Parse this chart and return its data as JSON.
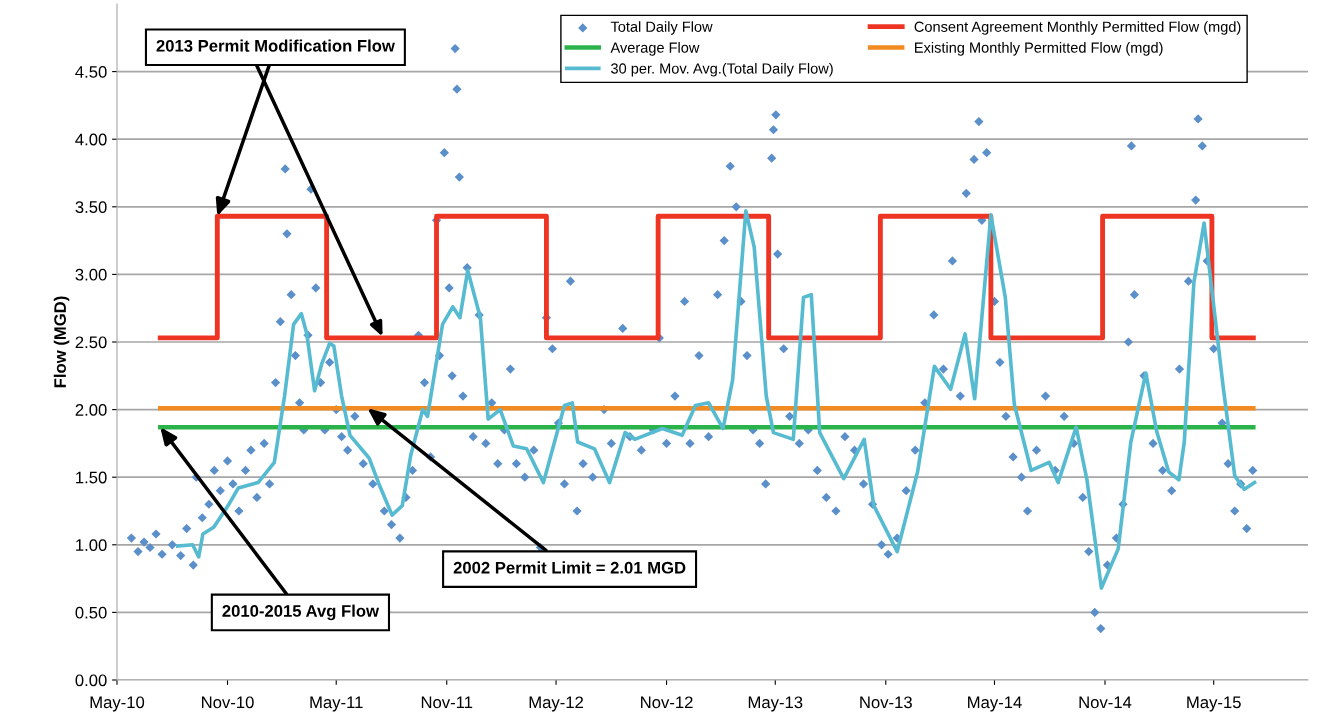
{
  "chart_data": {
    "type": "scatter",
    "ylabel": "Flow (MGD)",
    "xlim": [
      "2010-05-01",
      "2015-10-05"
    ],
    "xticks": [
      {
        "value": "2010-05-01",
        "label": "May-10"
      },
      {
        "value": "2010-11-01",
        "label": "Nov-10"
      },
      {
        "value": "2011-05-01",
        "label": "May-11"
      },
      {
        "value": "2011-11-01",
        "label": "Nov-11"
      },
      {
        "value": "2012-05-01",
        "label": "May-12"
      },
      {
        "value": "2012-11-01",
        "label": "Nov-12"
      },
      {
        "value": "2013-05-01",
        "label": "May-13"
      },
      {
        "value": "2013-11-01",
        "label": "Nov-13"
      },
      {
        "value": "2014-05-01",
        "label": "May-14"
      },
      {
        "value": "2014-11-01",
        "label": "Nov-14"
      },
      {
        "value": "2015-05-01",
        "label": "May-15"
      }
    ],
    "ylim": [
      0,
      5.0
    ],
    "yticks": [
      {
        "value": 0,
        "label": "0.00"
      },
      {
        "value": 0.5,
        "label": "0.50"
      },
      {
        "value": 1.0,
        "label": "1.00"
      },
      {
        "value": 1.5,
        "label": "1.50"
      },
      {
        "value": 2.0,
        "label": "2.00"
      },
      {
        "value": 2.5,
        "label": "2.50"
      },
      {
        "value": 3.0,
        "label": "3.00"
      },
      {
        "value": 3.5,
        "label": "3.50"
      },
      {
        "value": 4.0,
        "label": "4.00"
      },
      {
        "value": 4.5,
        "label": "4.50"
      }
    ],
    "grid": "y",
    "legend": "top right",
    "series": [
      {
        "name": "Total Daily Flow",
        "marker": "diamond",
        "color": "#5b8fc9",
        "x": [
          "2010-05-25",
          "2010-06-05",
          "2010-06-15",
          "2010-06-25",
          "2010-07-05",
          "2010-07-15",
          "2010-08-01",
          "2010-08-15",
          "2010-08-25",
          "2010-09-05",
          "2010-09-10",
          "2010-09-20",
          "2010-10-01",
          "2010-10-10",
          "2010-10-20",
          "2010-11-01",
          "2010-11-10",
          "2010-11-20",
          "2010-12-01",
          "2010-12-10",
          "2010-12-20",
          "2011-01-01",
          "2011-01-10",
          "2011-01-20",
          "2011-01-28",
          "2011-02-05",
          "2011-02-08",
          "2011-02-15",
          "2011-02-22",
          "2011-03-01",
          "2011-03-08",
          "2011-03-15",
          "2011-03-20",
          "2011-03-28",
          "2011-04-05",
          "2011-04-12",
          "2011-04-20",
          "2011-05-01",
          "2011-05-10",
          "2011-05-20",
          "2011-06-01",
          "2011-06-15",
          "2011-07-01",
          "2011-07-20",
          "2011-08-01",
          "2011-08-15",
          "2011-08-25",
          "2011-09-05",
          "2011-09-15",
          "2011-09-25",
          "2011-10-05",
          "2011-10-15",
          "2011-10-20",
          "2011-10-28",
          "2011-11-05",
          "2011-11-10",
          "2011-11-15",
          "2011-11-18",
          "2011-11-22",
          "2011-11-28",
          "2011-12-05",
          "2011-12-15",
          "2011-12-25",
          "2012-01-05",
          "2012-01-15",
          "2012-01-25",
          "2012-02-05",
          "2012-02-15",
          "2012-02-25",
          "2012-03-10",
          "2012-03-25",
          "2012-04-05",
          "2012-04-15",
          "2012-04-25",
          "2012-05-05",
          "2012-05-15",
          "2012-05-25",
          "2012-06-05",
          "2012-06-15",
          "2012-07-01",
          "2012-07-20",
          "2012-08-01",
          "2012-08-20",
          "2012-09-01",
          "2012-09-20",
          "2012-10-10",
          "2012-10-20",
          "2012-11-01",
          "2012-11-15",
          "2012-12-01",
          "2012-12-10",
          "2012-12-25",
          "2013-01-10",
          "2013-01-25",
          "2013-02-05",
          "2013-02-15",
          "2013-02-25",
          "2013-03-05",
          "2013-03-15",
          "2013-03-25",
          "2013-04-05",
          "2013-04-15",
          "2013-04-25",
          "2013-04-28",
          "2013-05-02",
          "2013-05-05",
          "2013-05-15",
          "2013-05-25",
          "2013-06-10",
          "2013-06-25",
          "2013-07-10",
          "2013-07-25",
          "2013-08-10",
          "2013-08-25",
          "2013-09-10",
          "2013-09-25",
          "2013-10-10",
          "2013-10-25",
          "2013-11-05",
          "2013-11-20",
          "2013-12-05",
          "2013-12-20",
          "2014-01-05",
          "2014-01-20",
          "2014-02-05",
          "2014-02-20",
          "2014-03-05",
          "2014-03-15",
          "2014-03-28",
          "2014-04-05",
          "2014-04-10",
          "2014-04-18",
          "2014-05-01",
          "2014-05-10",
          "2014-05-20",
          "2014-06-01",
          "2014-06-15",
          "2014-06-25",
          "2014-07-10",
          "2014-07-25",
          "2014-08-10",
          "2014-08-25",
          "2014-09-10",
          "2014-09-25",
          "2014-10-05",
          "2014-10-15",
          "2014-10-25",
          "2014-11-05",
          "2014-11-20",
          "2014-12-01",
          "2014-12-10",
          "2014-12-15",
          "2014-12-20",
          "2015-01-05",
          "2015-01-20",
          "2015-02-05",
          "2015-02-20",
          "2015-03-05",
          "2015-03-20",
          "2015-04-01",
          "2015-04-05",
          "2015-04-12",
          "2015-04-20",
          "2015-05-01",
          "2015-05-15",
          "2015-05-25",
          "2015-06-05",
          "2015-06-15",
          "2015-06-25",
          "2015-07-05"
        ],
        "values": [
          1.05,
          0.95,
          1.02,
          0.98,
          1.08,
          0.93,
          1.0,
          0.92,
          1.12,
          0.85,
          1.5,
          1.2,
          1.3,
          1.55,
          1.4,
          1.62,
          1.45,
          1.25,
          1.55,
          1.7,
          1.35,
          1.75,
          1.45,
          2.2,
          2.65,
          3.78,
          3.3,
          2.85,
          2.4,
          2.05,
          1.85,
          2.55,
          3.63,
          2.9,
          2.2,
          1.85,
          2.35,
          2.0,
          1.8,
          1.7,
          1.95,
          1.6,
          1.45,
          1.25,
          1.15,
          1.05,
          1.35,
          1.55,
          2.55,
          2.2,
          1.65,
          3.4,
          2.4,
          3.9,
          2.9,
          2.25,
          4.67,
          4.37,
          3.72,
          2.1,
          3.05,
          1.8,
          2.7,
          1.75,
          2.05,
          1.6,
          1.85,
          2.3,
          1.6,
          1.5,
          1.7,
          0.98,
          2.68,
          2.45,
          1.9,
          1.45,
          2.95,
          1.25,
          1.6,
          1.5,
          2.0,
          1.75,
          2.6,
          1.8,
          1.7,
          1.85,
          2.53,
          1.75,
          2.1,
          2.8,
          1.75,
          2.4,
          1.8,
          2.85,
          3.25,
          3.8,
          3.5,
          2.8,
          2.4,
          1.85,
          1.75,
          1.45,
          3.86,
          4.07,
          4.18,
          3.15,
          2.45,
          1.95,
          1.75,
          1.85,
          1.55,
          1.35,
          1.25,
          1.8,
          1.7,
          1.45,
          1.3,
          1.0,
          0.93,
          1.05,
          1.4,
          1.7,
          2.05,
          2.7,
          2.3,
          3.1,
          2.1,
          3.6,
          3.85,
          4.13,
          3.4,
          3.9,
          2.8,
          2.35,
          1.95,
          1.65,
          1.5,
          1.25,
          1.7,
          2.1,
          1.55,
          1.95,
          1.75,
          1.35,
          0.95,
          0.5,
          0.38,
          0.85,
          1.05,
          1.3,
          2.5,
          3.95,
          2.85,
          2.25,
          1.75,
          1.55,
          1.4,
          2.3,
          2.95,
          3.55,
          4.15,
          3.95,
          3.1,
          2.45,
          1.9,
          1.6,
          1.25,
          1.45,
          1.12,
          1.55
        ]
      },
      {
        "name": "Average Flow",
        "type": "line",
        "color": "#2bb34b",
        "x": [
          "2010-07-12",
          "2015-07-06"
        ],
        "values": [
          1.87,
          1.87
        ]
      },
      {
        "name": "30 per. Mov. Avg.(Total Daily Flow)",
        "type": "line",
        "color": "#56bbd0",
        "x": [
          "2010-08-10",
          "2010-09-04",
          "2010-09-14",
          "2010-09-21",
          "2010-10-09",
          "2010-11-02",
          "2010-11-19",
          "2010-12-22",
          "2011-01-18",
          "2011-02-04",
          "2011-02-19",
          "2011-03-04",
          "2011-03-13",
          "2011-03-26",
          "2011-04-07",
          "2011-04-20",
          "2011-04-27",
          "2011-05-10",
          "2011-05-24",
          "2011-06-25",
          "2011-07-12",
          "2011-08-02",
          "2011-08-19",
          "2011-09-02",
          "2011-09-22",
          "2011-09-30",
          "2011-10-25",
          "2011-11-11",
          "2011-11-23",
          "2011-12-06",
          "2011-12-27",
          "2012-01-09",
          "2012-01-29",
          "2012-02-20",
          "2012-03-13",
          "2012-04-10",
          "2012-05-15",
          "2012-05-28",
          "2012-06-06",
          "2012-07-04",
          "2012-07-29",
          "2012-08-24",
          "2012-09-09",
          "2012-10-25",
          "2012-11-27",
          "2012-12-19",
          "2013-01-10",
          "2013-02-03",
          "2013-02-19",
          "2013-03-13",
          "2013-03-27",
          "2013-04-16",
          "2013-04-28",
          "2013-05-31",
          "2013-06-17",
          "2013-06-30",
          "2013-07-14",
          "2013-08-23",
          "2013-09-26",
          "2013-10-12",
          "2013-11-20",
          "2013-12-24",
          "2014-01-21",
          "2014-02-17",
          "2014-03-13",
          "2014-03-29",
          "2014-04-25",
          "2014-05-19",
          "2014-06-03",
          "2014-07-01",
          "2014-07-31",
          "2014-08-15",
          "2014-09-14",
          "2014-10-02",
          "2014-10-26",
          "2014-11-23",
          "2014-12-14",
          "2015-01-08",
          "2015-01-26",
          "2015-02-15",
          "2015-03-04",
          "2015-03-13",
          "2015-03-29",
          "2015-04-15",
          "2015-04-27",
          "2015-05-17",
          "2015-06-05",
          "2015-06-21",
          "2015-07-08"
        ],
        "values": [
          0.99,
          1.0,
          0.91,
          1.08,
          1.13,
          1.29,
          1.42,
          1.46,
          1.61,
          2.1,
          2.63,
          2.71,
          2.56,
          2.14,
          2.34,
          2.49,
          2.47,
          2.1,
          1.81,
          1.64,
          1.44,
          1.22,
          1.29,
          1.66,
          2.0,
          1.95,
          2.63,
          2.76,
          2.68,
          3.03,
          2.68,
          1.93,
          2.0,
          1.73,
          1.71,
          1.46,
          2.03,
          2.05,
          1.76,
          1.71,
          1.46,
          1.83,
          1.78,
          1.86,
          1.81,
          2.03,
          2.05,
          1.86,
          2.22,
          3.47,
          3.2,
          2.1,
          1.83,
          1.78,
          2.83,
          2.85,
          1.83,
          1.49,
          1.78,
          1.29,
          0.95,
          1.54,
          2.32,
          2.15,
          2.56,
          2.08,
          3.44,
          2.83,
          2.04,
          1.55,
          1.61,
          1.46,
          1.87,
          1.48,
          0.68,
          0.97,
          1.76,
          2.27,
          1.84,
          1.54,
          1.48,
          1.76,
          2.94,
          3.38,
          2.92,
          2.16,
          1.51,
          1.41,
          1.46
        ]
      },
      {
        "name": "Consent Agreement Monthly Permitted Flow (mgd)",
        "type": "step",
        "color": "#ee3524",
        "x": [
          "2010-07-12",
          "2010-10-15",
          "2011-04-15",
          "2011-10-15",
          "2012-04-15",
          "2012-10-18",
          "2013-04-20",
          "2013-10-23",
          "2014-04-25",
          "2014-10-28",
          "2015-04-28",
          "2015-07-06"
        ],
        "values": [
          2.53,
          3.43,
          2.53,
          3.43,
          2.53,
          3.43,
          2.53,
          3.43,
          2.53,
          3.43,
          2.53,
          2.53
        ]
      },
      {
        "name": "Existing Monthly Permitted Flow (mgd)",
        "type": "line",
        "color": "#f28a22",
        "x": [
          "2010-07-12",
          "2015-07-06"
        ],
        "values": [
          2.01,
          2.01
        ]
      }
    ],
    "annotations": [
      {
        "text": "2013 Permit Modification Flow",
        "x": "2010-10-15",
        "y": 3.43
      },
      {
        "text": "2002 Permit Limit = 2.01 MGD",
        "x": "2011-06-22",
        "y": 2.01
      },
      {
        "text": "2010-2015 Avg Flow",
        "x": "2010-07-12",
        "y": 1.87
      }
    ]
  }
}
